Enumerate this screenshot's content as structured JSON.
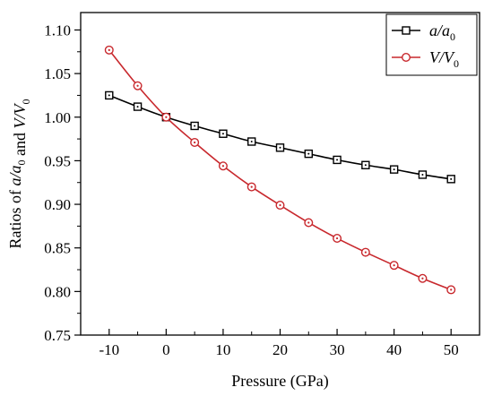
{
  "chart_data": {
    "type": "line",
    "xlabel": "Pressure (GPa)",
    "ylabel": {
      "prefix": "Ratios of ",
      "mid": " and ",
      "term1": {
        "base": "a/a",
        "sub": "0"
      },
      "term2": {
        "base": "V/V",
        "sub": "0"
      }
    },
    "xlim": [
      -15,
      55
    ],
    "ylim": [
      0.75,
      1.12
    ],
    "xticks": [
      -10,
      0,
      10,
      20,
      30,
      40,
      50
    ],
    "xtick_labels": [
      "-10",
      "0",
      "10",
      "20",
      "30",
      "40",
      "50"
    ],
    "yticks": [
      0.75,
      0.8,
      0.85,
      0.9,
      0.95,
      1.0,
      1.05,
      1.1
    ],
    "ytick_labels": [
      "0.75",
      "0.80",
      "0.85",
      "0.90",
      "0.95",
      "1.00",
      "1.05",
      "1.10"
    ],
    "x": [
      -10,
      -5,
      0,
      5,
      10,
      15,
      20,
      25,
      30,
      35,
      40,
      45,
      50
    ],
    "series": [
      {
        "name": {
          "base": "a/a",
          "sub": "0"
        },
        "color": "#000000",
        "marker": "square",
        "values": [
          1.025,
          1.012,
          1.0,
          0.99,
          0.981,
          0.972,
          0.965,
          0.958,
          0.951,
          0.945,
          0.94,
          0.934,
          0.929
        ]
      },
      {
        "name": {
          "base": "V/V",
          "sub": "0"
        },
        "color": "#c8282d",
        "marker": "circle",
        "values": [
          1.077,
          1.036,
          1.0,
          0.971,
          0.944,
          0.92,
          0.899,
          0.879,
          0.861,
          0.845,
          0.83,
          0.815,
          0.802
        ]
      }
    ],
    "legend_position": "top-right",
    "grid": false
  }
}
